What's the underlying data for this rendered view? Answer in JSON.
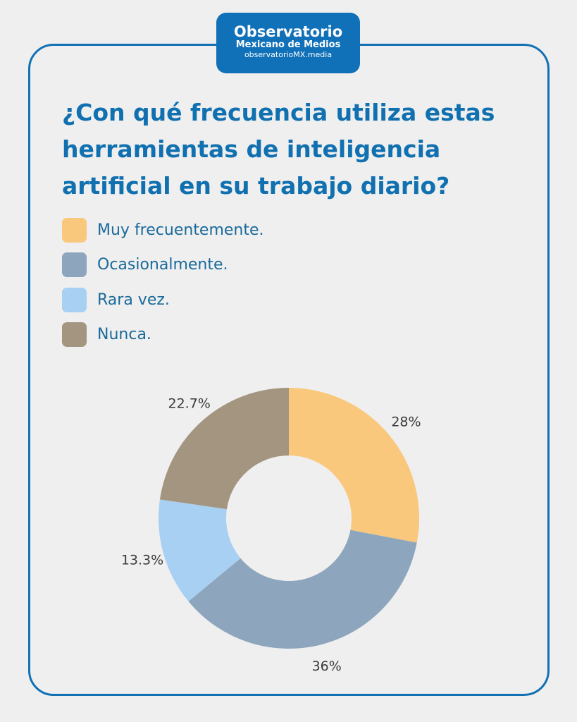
{
  "logo": {
    "line1": "Observatorio",
    "line2": "Mexicano de Medios",
    "line3": "observatorioMX.media"
  },
  "title": "¿Con qué frecuencia utiliza estas herramientas de inteligencia artificial en su trabajo diario?",
  "chart_data": {
    "type": "pie",
    "variant": "donut",
    "title": "¿Con qué frecuencia utiliza estas herramientas de inteligencia artificial en su trabajo diario?",
    "legend_position": "top-left",
    "categories": [
      "Muy frecuentemente.",
      "Ocasionalmente.",
      "Rara vez.",
      "Nunca."
    ],
    "values": [
      28,
      36,
      13.3,
      22.7
    ],
    "labels": [
      "28%",
      "36%",
      "13.3%",
      "22.7%"
    ],
    "colors": [
      "#f9c87c",
      "#8da6bd",
      "#a7d0f2",
      "#a39580"
    ]
  }
}
